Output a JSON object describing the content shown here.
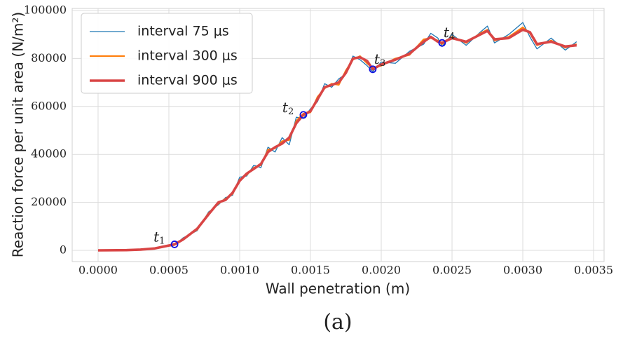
{
  "chart_data": {
    "type": "line",
    "xlabel": "Wall penetration (m)",
    "ylabel": "Reaction force per unit area (N/m²)",
    "caption": "(a)",
    "x": [
      0,
      0.0002,
      0.0003,
      0.0004,
      0.00054,
      0.0006,
      0.0007,
      0.00078,
      0.00085,
      0.0009,
      0.00095,
      0.001,
      0.00105,
      0.0011,
      0.00115,
      0.0012,
      0.00125,
      0.0013,
      0.00135,
      0.0014,
      0.00145,
      0.0015,
      0.00155,
      0.0016,
      0.00165,
      0.0017,
      0.00175,
      0.0018,
      0.00185,
      0.0019,
      0.00194,
      0.002,
      0.0021,
      0.0022,
      0.0023,
      0.00235,
      0.0024,
      0.00243,
      0.0025,
      0.0026,
      0.0027,
      0.00275,
      0.0028,
      0.0029,
      0.003,
      0.00305,
      0.0031,
      0.0032,
      0.0033,
      0.00338
    ],
    "series": [
      {
        "name": "interval 75 μs",
        "color": "#1f77b4",
        "width": 1.3,
        "values": [
          0,
          150,
          250,
          900,
          2100,
          5200,
          8200,
          16000,
          19000,
          22000,
          23000,
          30500,
          31000,
          35500,
          34500,
          43000,
          41000,
          47000,
          44000,
          55500,
          55000,
          59000,
          62000,
          69500,
          68000,
          71500,
          73500,
          81000,
          79500,
          77000,
          74500,
          78500,
          78000,
          83000,
          86000,
          90500,
          88500,
          85000,
          90000,
          85500,
          91000,
          93500,
          86500,
          90000,
          95000,
          89000,
          84000,
          88500,
          83500,
          87000
        ]
      },
      {
        "name": "interval 300 μs",
        "color": "#ff7f0e",
        "width": 2.2,
        "values": [
          0,
          120,
          280,
          850,
          2300,
          4800,
          8600,
          15500,
          19500,
          21500,
          23500,
          29500,
          31500,
          34500,
          35500,
          42000,
          42500,
          45500,
          46000,
          54000,
          57000,
          57500,
          64000,
          67500,
          69500,
          69000,
          75000,
          79500,
          81000,
          78000,
          76000,
          77000,
          80000,
          81500,
          88000,
          88500,
          87500,
          86000,
          89000,
          86500,
          90500,
          92000,
          87500,
          89000,
          93000,
          90500,
          85500,
          87500,
          84500,
          86000
        ]
      },
      {
        "name": "interval 900 μs",
        "color": "#d94545",
        "width": 3.6,
        "values": [
          0,
          100,
          300,
          800,
          2500,
          4500,
          9000,
          15000,
          20000,
          21000,
          24000,
          29000,
          32000,
          34000,
          36000,
          41000,
          43000,
          44500,
          47000,
          53000,
          56500,
          58000,
          63000,
          68000,
          69000,
          70000,
          74000,
          80000,
          80500,
          79000,
          75500,
          77500,
          79500,
          82000,
          87000,
          89000,
          87000,
          86500,
          88500,
          87000,
          90000,
          91500,
          88000,
          88500,
          92000,
          91000,
          86000,
          87000,
          85000,
          85500
        ]
      }
    ],
    "annotations": [
      {
        "text": "t",
        "sub": "1",
        "x": 0.00054,
        "y": 2500
      },
      {
        "text": "t",
        "sub": "2",
        "x": 0.00145,
        "y": 56500
      },
      {
        "text": "t",
        "sub": "3",
        "x": 0.00194,
        "y": 75500
      },
      {
        "text": "t",
        "sub": "4",
        "x": 0.00243,
        "y": 86500
      }
    ],
    "marker_color": "#1010e0",
    "xlim": [
      -0.000183,
      0.003574
    ],
    "ylim": [
      -4678,
      100877
    ],
    "xticks": [
      {
        "value": 0,
        "label": "0.0000"
      },
      {
        "value": 0.0005,
        "label": "0.0005"
      },
      {
        "value": 0.001,
        "label": "0.0010"
      },
      {
        "value": 0.0015,
        "label": "0.0015"
      },
      {
        "value": 0.002,
        "label": "0.0020"
      },
      {
        "value": 0.0025,
        "label": "0.0025"
      },
      {
        "value": 0.003,
        "label": "0.0030"
      },
      {
        "value": 0.0035,
        "label": "0.0035"
      }
    ],
    "yticks": [
      0,
      20000,
      40000,
      60000,
      80000,
      100000
    ],
    "grid": true,
    "legend": "upper left"
  }
}
